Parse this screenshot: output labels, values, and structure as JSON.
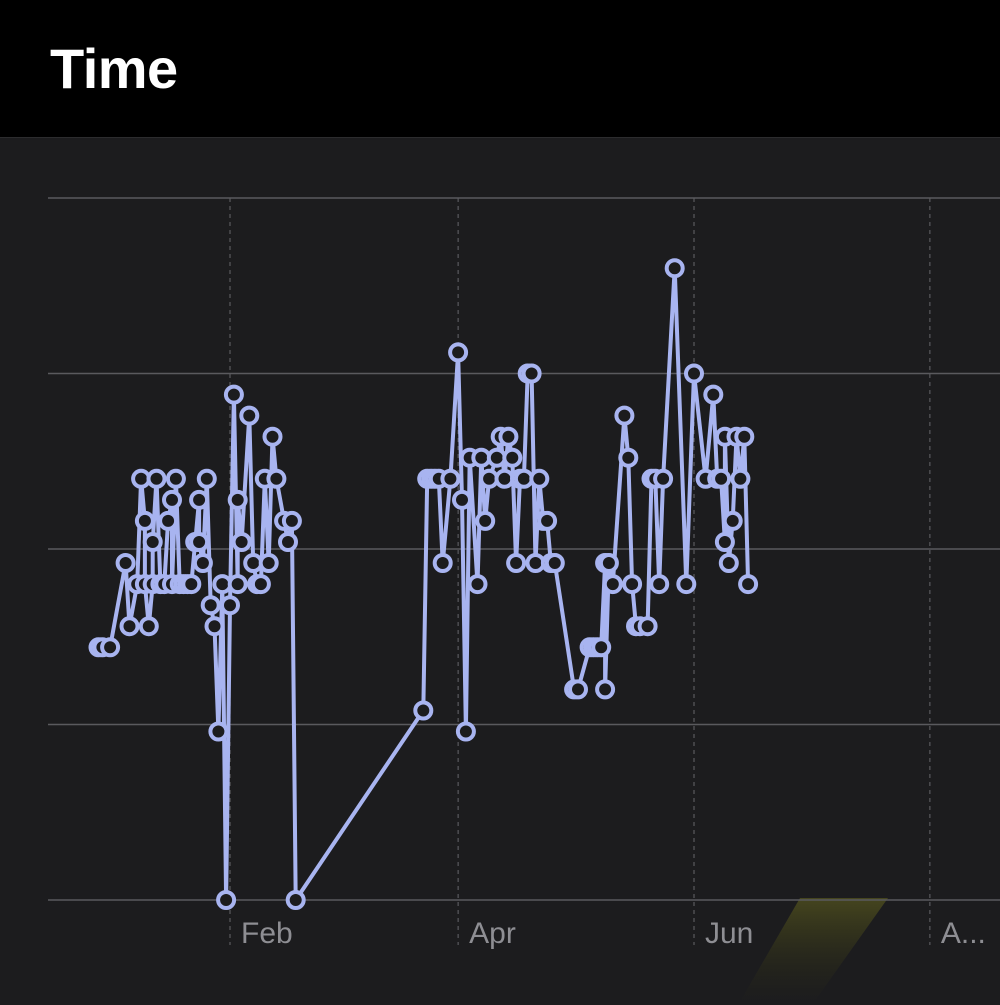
{
  "header": {
    "title": "Time"
  },
  "colors": {
    "background": "#1c1c1e",
    "header_background": "#000000",
    "series": "#a8b4f0",
    "gridline": "#5a5a5e",
    "tick_label": "#8e8e93",
    "highlight": "#3a3a1a"
  },
  "chart_data": {
    "type": "line",
    "title": "Time",
    "xlabel": "",
    "ylabel": "",
    "y_tick_labels_visible": false,
    "ylim": [
      0,
      10
    ],
    "y_gridlines": [
      0,
      2.5,
      5,
      7.5,
      10
    ],
    "x_gridlines": [
      "Feb",
      "Apr",
      "Jun",
      "Aug"
    ],
    "x_tick_labels": [
      "Feb",
      "Apr",
      "Jun",
      "A..."
    ],
    "grid": true,
    "series": [
      {
        "marker": "hollow-circle",
        "points": [
          [
            "Dec 29",
            3.6
          ],
          [
            "Dec 30",
            3.6
          ],
          [
            "Jan 1",
            3.6
          ],
          [
            "Jan 5",
            4.8
          ],
          [
            "Jan 6",
            3.9
          ],
          [
            "Jan 8",
            4.5
          ],
          [
            "Jan 9",
            6.0
          ],
          [
            "Jan 10",
            5.4
          ],
          [
            "Jan 10",
            4.5
          ],
          [
            "Jan 11",
            3.9
          ],
          [
            "Jan 12",
            4.5
          ],
          [
            "Jan 12",
            5.1
          ],
          [
            "Jan 13",
            6.0
          ],
          [
            "Jan 14",
            4.5
          ],
          [
            "Jan 15",
            4.5
          ],
          [
            "Jan 16",
            5.4
          ],
          [
            "Jan 17",
            5.7
          ],
          [
            "Jan 17",
            4.5
          ],
          [
            "Jan 18",
            6.0
          ],
          [
            "Jan 19",
            4.5
          ],
          [
            "Jan 20",
            4.5
          ],
          [
            "Jan 21",
            4.5
          ],
          [
            "Jan 22",
            4.5
          ],
          [
            "Jan 23",
            5.1
          ],
          [
            "Jan 24",
            5.7
          ],
          [
            "Jan 24",
            5.1
          ],
          [
            "Jan 25",
            4.8
          ],
          [
            "Jan 26",
            6.0
          ],
          [
            "Jan 27",
            4.2
          ],
          [
            "Jan 28",
            3.9
          ],
          [
            "Jan 29",
            2.4
          ],
          [
            "Jan 30",
            4.5
          ],
          [
            "Jan 31",
            0.0
          ],
          [
            "Feb 1",
            4.2
          ],
          [
            "Feb 2",
            7.2
          ],
          [
            "Feb 3",
            4.5
          ],
          [
            "Feb 3",
            5.7
          ],
          [
            "Feb 4",
            5.1
          ],
          [
            "Feb 6",
            6.9
          ],
          [
            "Feb 7",
            4.8
          ],
          [
            "Feb 8",
            4.5
          ],
          [
            "Feb 9",
            4.5
          ],
          [
            "Feb 10",
            6.0
          ],
          [
            "Feb 11",
            4.8
          ],
          [
            "Feb 12",
            6.6
          ],
          [
            "Feb 13",
            6.0
          ],
          [
            "Feb 15",
            5.4
          ],
          [
            "Feb 16",
            5.1
          ],
          [
            "Feb 17",
            5.4
          ],
          [
            "Feb 18",
            0.0
          ],
          [
            "Mar 23",
            2.7
          ],
          [
            "Mar 24",
            6.0
          ],
          [
            "Mar 25",
            6.0
          ],
          [
            "Mar 26",
            6.0
          ],
          [
            "Mar 27",
            6.0
          ],
          [
            "Mar 28",
            4.8
          ],
          [
            "Mar 30",
            6.0
          ],
          [
            "Apr 1",
            7.8
          ],
          [
            "Apr 2",
            5.7
          ],
          [
            "Apr 3",
            2.4
          ],
          [
            "Apr 4",
            6.3
          ],
          [
            "Apr 6",
            4.5
          ],
          [
            "Apr 7",
            6.3
          ],
          [
            "Apr 8",
            5.4
          ],
          [
            "Apr 9",
            6.0
          ],
          [
            "Apr 11",
            6.3
          ],
          [
            "Apr 12",
            6.6
          ],
          [
            "Apr 13",
            6.0
          ],
          [
            "Apr 14",
            6.6
          ],
          [
            "Apr 15",
            6.3
          ],
          [
            "Apr 16",
            4.8
          ],
          [
            "Apr 17",
            6.0
          ],
          [
            "Apr 18",
            6.0
          ],
          [
            "Apr 19",
            7.5
          ],
          [
            "Apr 20",
            7.5
          ],
          [
            "Apr 21",
            4.8
          ],
          [
            "Apr 22",
            6.0
          ],
          [
            "Apr 23",
            5.4
          ],
          [
            "Apr 24",
            5.4
          ],
          [
            "Apr 25",
            4.8
          ],
          [
            "Apr 26",
            4.8
          ],
          [
            "May 1",
            3.0
          ],
          [
            "May 2",
            3.0
          ],
          [
            "May 5",
            3.6
          ],
          [
            "May 6",
            3.6
          ],
          [
            "May 7",
            3.6
          ],
          [
            "May 8",
            3.6
          ],
          [
            "May 9",
            4.8
          ],
          [
            "May 9",
            3.0
          ],
          [
            "May 10",
            4.8
          ],
          [
            "May 11",
            4.5
          ],
          [
            "May 14",
            6.9
          ],
          [
            "May 15",
            6.3
          ],
          [
            "May 16",
            4.5
          ],
          [
            "May 17",
            3.9
          ],
          [
            "May 18",
            3.9
          ],
          [
            "May 20",
            3.9
          ],
          [
            "May 21",
            6.0
          ],
          [
            "May 22",
            6.0
          ],
          [
            "May 23",
            4.5
          ],
          [
            "May 24",
            6.0
          ],
          [
            "May 27",
            9.0
          ],
          [
            "May 30",
            4.5
          ],
          [
            "Jun 1",
            7.5
          ],
          [
            "Jun 4",
            6.0
          ],
          [
            "Jun 6",
            7.2
          ],
          [
            "Jun 7",
            6.0
          ],
          [
            "Jun 8",
            6.0
          ],
          [
            "Jun 9",
            5.1
          ],
          [
            "Jun 9",
            6.6
          ],
          [
            "Jun 10",
            4.8
          ],
          [
            "Jun 11",
            5.4
          ],
          [
            "Jun 12",
            6.6
          ],
          [
            "Jun 13",
            6.0
          ],
          [
            "Jun 14",
            6.6
          ],
          [
            "Jun 15",
            4.5
          ]
        ]
      }
    ]
  }
}
